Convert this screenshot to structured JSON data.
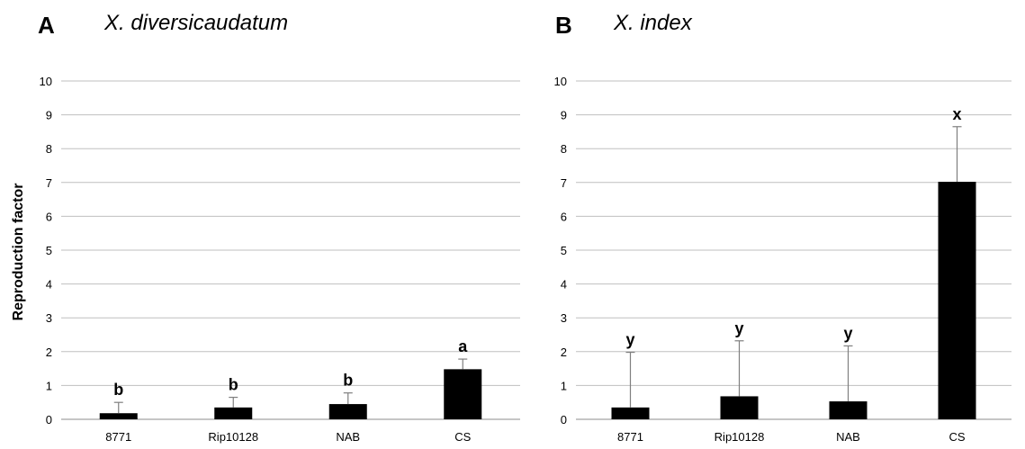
{
  "ylabel": "Reproduction factor",
  "chart_data": [
    {
      "type": "bar",
      "panel": "A",
      "title": "X. diversicaudatum",
      "categories": [
        "8771",
        "Rip10128",
        "NAB",
        "CS"
      ],
      "values": [
        0.18,
        0.35,
        0.45,
        1.48
      ],
      "error_upper": [
        0.5,
        0.65,
        0.78,
        1.78
      ],
      "significance": [
        "b",
        "b",
        "b",
        "a"
      ],
      "yticks": [
        "0",
        "1",
        "2",
        "3",
        "4",
        "5",
        "6",
        "7",
        "8",
        "9",
        "10"
      ],
      "ylim": [
        0,
        10
      ],
      "grid": true,
      "bar_color": "#000000"
    },
    {
      "type": "bar",
      "panel": "B",
      "title": "X. index",
      "categories": [
        "8771",
        "Rip10128",
        "NAB",
        "CS"
      ],
      "values": [
        0.35,
        0.68,
        0.53,
        7.02
      ],
      "error_upper": [
        1.98,
        2.32,
        2.17,
        8.65
      ],
      "significance": [
        "y",
        "y",
        "y",
        "x"
      ],
      "yticks": [
        "0",
        "1",
        "2",
        "3",
        "4",
        "5",
        "6",
        "7",
        "8",
        "9",
        "10"
      ],
      "ylim": [
        0,
        10
      ],
      "grid": true,
      "bar_color": "#000000"
    }
  ]
}
